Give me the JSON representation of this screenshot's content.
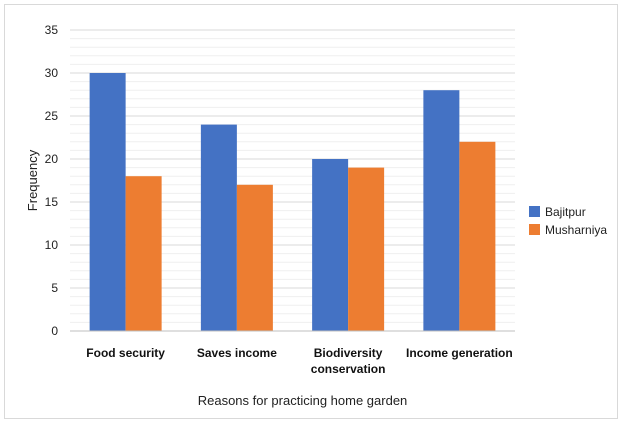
{
  "chart_data": {
    "type": "bar",
    "categories": [
      "Food security",
      "Saves income",
      "Biodiversity conservation",
      "Income generation"
    ],
    "category_lines": [
      [
        "Food security"
      ],
      [
        "Saves income"
      ],
      [
        "Biodiversity",
        "conservation"
      ],
      [
        "Income generation"
      ]
    ],
    "series": [
      {
        "name": "Bajitpur",
        "values": [
          30,
          24,
          20,
          28
        ],
        "color": "#4472C4"
      },
      {
        "name": "Musharniya",
        "values": [
          18,
          17,
          19,
          22
        ],
        "color": "#ED7D31"
      }
    ],
    "title": "",
    "xlabel": "Reasons for practicing  home garden",
    "ylabel": "Frequency",
    "ylim": [
      0,
      35
    ],
    "yticks": [
      0,
      5,
      10,
      15,
      20,
      25,
      30,
      35
    ],
    "grid": true,
    "legend_position": "right"
  }
}
